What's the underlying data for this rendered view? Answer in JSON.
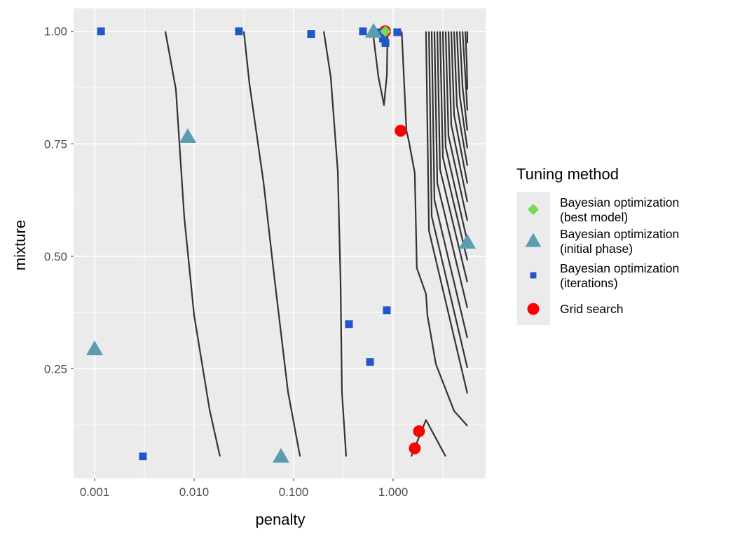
{
  "chart_data": {
    "type": "scatter",
    "xlabel": "penalty",
    "ylabel": "mixture",
    "x_scale": "log10",
    "xlim": [
      0.000615,
      8.5
    ],
    "ylim": [
      0.006,
      1.051
    ],
    "x_ticks": [
      0.001,
      0.01,
      0.1,
      1.0
    ],
    "x_tick_labels": [
      "0.001",
      "0.010",
      "0.100",
      "1.000"
    ],
    "y_ticks": [
      0.25,
      0.5,
      0.75,
      1.0
    ],
    "y_tick_labels": [
      "0.25",
      "0.50",
      "0.75",
      "1.00"
    ],
    "grid": true,
    "legend": {
      "title": "Tuning method",
      "position": "right",
      "entries": [
        {
          "label_line1": "Bayesian optimization",
          "label_line2": "(best model)",
          "shape": "diamond",
          "color": "#77D855"
        },
        {
          "label_line1": "Bayesian optimization",
          "label_line2": "(initial phase)",
          "shape": "triangle",
          "color": "#5A9DAE"
        },
        {
          "label_line1": "Bayesian optimization",
          "label_line2": "(iterations)",
          "shape": "square",
          "color": "#1F56C8"
        },
        {
          "label_line1": "Grid search",
          "label_line2": "",
          "shape": "circle",
          "color": "#FF0000"
        }
      ]
    },
    "series": [
      {
        "name": "Grid search",
        "shape": "circle",
        "color": "#FF0000",
        "points": [
          [
            0.83,
            1.0
          ],
          [
            1.19,
            0.779
          ],
          [
            1.82,
            0.111
          ],
          [
            1.65,
            0.073
          ]
        ]
      },
      {
        "name": "Bayesian optimization (iterations)",
        "shape": "square",
        "color": "#1F56C8",
        "points": [
          [
            0.00116,
            1.0
          ],
          [
            0.0282,
            1.0
          ],
          [
            0.15,
            0.994
          ],
          [
            0.498,
            1.0
          ],
          [
            0.734,
            0.998
          ],
          [
            0.79,
            0.984
          ],
          [
            0.837,
            0.974
          ],
          [
            1.1,
            0.998
          ],
          [
            0.00306,
            0.055
          ],
          [
            0.36,
            0.349
          ],
          [
            0.864,
            0.38
          ],
          [
            0.586,
            0.265
          ]
        ]
      },
      {
        "name": "Bayesian optimization (initial phase)",
        "shape": "triangle",
        "color": "#5A9DAE",
        "points": [
          [
            0.001,
            0.294
          ],
          [
            0.00864,
            0.766
          ],
          [
            0.0747,
            0.055
          ],
          [
            0.635,
            1.0
          ],
          [
            5.57,
            0.531
          ]
        ]
      },
      {
        "name": "Bayesian optimization (best model)",
        "shape": "diamond",
        "color": "#77D855",
        "points": [
          [
            0.837,
            1.0
          ]
        ]
      }
    ],
    "contours": [
      [
        [
          0.00514,
          1.0
        ],
        [
          0.00656,
          0.871
        ],
        [
          0.00796,
          0.587
        ],
        [
          0.01,
          0.369
        ],
        [
          0.0143,
          0.159
        ],
        [
          0.0182,
          0.055
        ]
      ],
      [
        [
          0.0316,
          1.0
        ],
        [
          0.036,
          0.883
        ],
        [
          0.0498,
          0.665
        ],
        [
          0.0645,
          0.447
        ],
        [
          0.0879,
          0.198
        ],
        [
          0.116,
          0.055
        ]
      ],
      [
        [
          0.201,
          1.0
        ],
        [
          0.236,
          0.899
        ],
        [
          0.278,
          0.688
        ],
        [
          0.296,
          0.447
        ],
        [
          0.306,
          0.198
        ],
        [
          0.337,
          0.055
        ]
      ],
      [
        [
          0.625,
          1.0
        ],
        [
          0.711,
          0.899
        ],
        [
          0.809,
          0.836
        ],
        [
          0.865,
          0.903
        ],
        [
          0.879,
          0.997
        ]
      ],
      [
        [
          1.22,
          1.0
        ],
        [
          1.36,
          0.779
        ],
        [
          1.43,
          0.759
        ],
        [
          1.65,
          0.685
        ],
        [
          1.73,
          0.474
        ],
        [
          2.14,
          0.416
        ],
        [
          2.21,
          0.369
        ],
        [
          2.69,
          0.26
        ],
        [
          4.1,
          0.156
        ],
        [
          5.57,
          0.123
        ]
      ],
      [
        [
          1.52,
          0.055
        ],
        [
          2.14,
          0.136
        ],
        [
          3.37,
          0.055
        ]
      ],
      [
        [
          2.14,
          1.0
        ],
        [
          2.29,
          0.557
        ],
        [
          5.57,
          0.195
        ]
      ],
      [
        [
          2.29,
          1.0
        ],
        [
          2.44,
          0.589
        ],
        [
          5.57,
          0.252
        ]
      ],
      [
        [
          2.44,
          1.0
        ],
        [
          2.6,
          0.625
        ],
        [
          5.57,
          0.318
        ]
      ],
      [
        [
          2.6,
          1.0
        ],
        [
          2.78,
          0.662
        ],
        [
          5.57,
          0.385
        ]
      ],
      [
        [
          2.78,
          1.0
        ],
        [
          2.96,
          0.693
        ],
        [
          5.57,
          0.442
        ]
      ],
      [
        [
          2.96,
          1.0
        ],
        [
          3.16,
          0.72
        ],
        [
          5.57,
          0.491
        ]
      ],
      [
        [
          3.16,
          1.0
        ],
        [
          3.37,
          0.743
        ],
        [
          5.57,
          0.533
        ]
      ],
      [
        [
          3.37,
          1.0
        ],
        [
          3.6,
          0.768
        ],
        [
          5.57,
          0.579
        ]
      ],
      [
        [
          3.6,
          1.0
        ],
        [
          3.84,
          0.792
        ],
        [
          5.57,
          0.621
        ]
      ],
      [
        [
          3.84,
          1.0
        ],
        [
          4.1,
          0.814
        ],
        [
          5.57,
          0.662
        ]
      ],
      [
        [
          4.1,
          1.0
        ],
        [
          4.37,
          0.836
        ],
        [
          5.57,
          0.701
        ]
      ],
      [
        [
          4.37,
          1.0
        ],
        [
          4.67,
          0.857
        ],
        [
          5.57,
          0.74
        ]
      ],
      [
        [
          4.67,
          1.0
        ],
        [
          4.98,
          0.878
        ],
        [
          5.57,
          0.779
        ]
      ],
      [
        [
          4.98,
          1.0
        ],
        [
          5.31,
          0.903
        ],
        [
          5.57,
          0.824
        ]
      ],
      [
        [
          5.31,
          1.0
        ],
        [
          5.5,
          0.929
        ],
        [
          5.57,
          0.871
        ]
      ],
      [
        [
          5.57,
          1.0
        ],
        [
          5.57,
          0.974
        ]
      ]
    ]
  }
}
